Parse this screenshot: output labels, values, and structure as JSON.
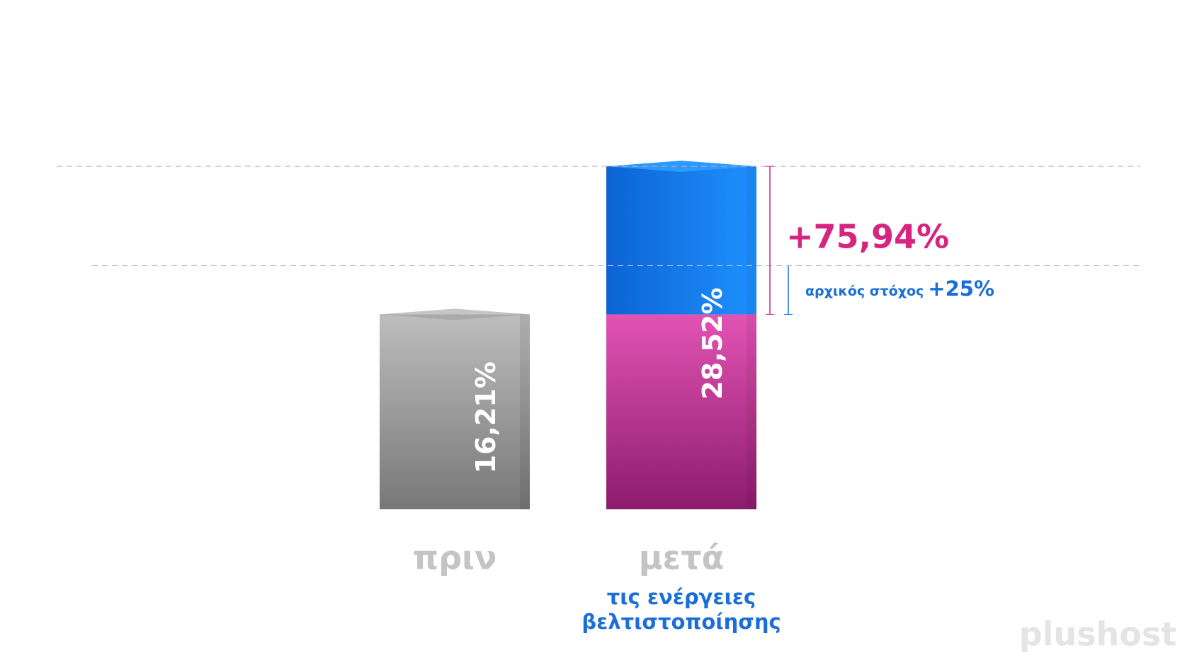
{
  "chart_data": {
    "type": "bar",
    "categories": [
      "πριν",
      "μετά"
    ],
    "values": [
      16.21,
      28.52
    ],
    "value_labels": [
      "16,21%",
      "28,52%"
    ],
    "colors": [
      "#9a9a9a",
      "#c43a98",
      "#1a7fe8"
    ],
    "category_note": [
      "τις ενέργειες",
      "βελτιστοποίησης"
    ],
    "increase": {
      "value": 75.94,
      "label": "+75,94%",
      "color": "#d6247f"
    },
    "goal": {
      "text": "αρχικός στόχος",
      "value": 25,
      "label": "+25%",
      "color": "#1a6fd6"
    },
    "watermark": "plushost"
  }
}
